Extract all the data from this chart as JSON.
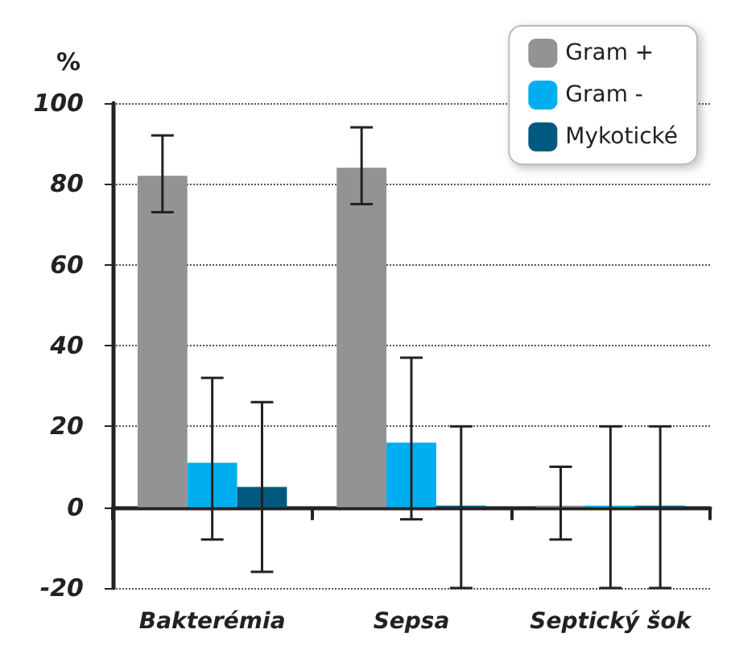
{
  "chart_data": {
    "type": "bar",
    "ylabel": "%",
    "categories": [
      "Bakterémia",
      "Sepsa",
      "Septický šok"
    ],
    "series": [
      {
        "name": "Gram +",
        "color": "#939393",
        "values": [
          82,
          84,
          0
        ],
        "errors": [
          [
            73,
            92
          ],
          [
            75,
            94
          ],
          [
            -8,
            10
          ]
        ]
      },
      {
        "name": "Gram -",
        "color": "#00aeef",
        "values": [
          11,
          16,
          0
        ],
        "errors": [
          [
            -8,
            32
          ],
          [
            -3,
            37
          ],
          [
            -20,
            20
          ]
        ]
      },
      {
        "name": "Mykotické",
        "color": "#005a7f",
        "values": [
          5,
          0,
          0
        ],
        "errors": [
          [
            -16,
            26
          ],
          [
            -20,
            20
          ],
          [
            -20,
            20
          ]
        ]
      }
    ],
    "ylim": [
      -20,
      100
    ],
    "yticks": [
      -20,
      0,
      20,
      40,
      60,
      80,
      100
    ],
    "grid": "y",
    "legend": "top right"
  }
}
